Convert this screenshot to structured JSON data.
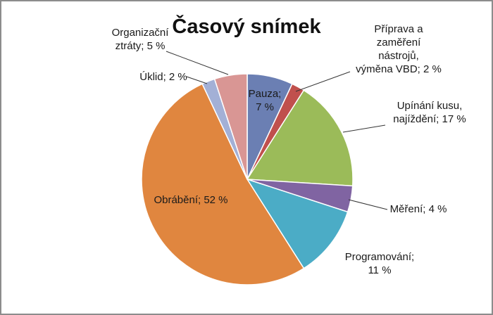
{
  "chart_data": {
    "type": "pie",
    "title": "Časový snímek",
    "slices": [
      {
        "label_lines": [
          "Pauza;",
          "7 %"
        ],
        "value": 7,
        "color": "#6b7fb3"
      },
      {
        "label_lines": [
          "Příprava a",
          "zaměření",
          "nástrojů,",
          "výměna VBD; 2 %"
        ],
        "value": 2,
        "color": "#c0504d"
      },
      {
        "label_lines": [
          "Upínání kusu,",
          "najíždění; 17 %"
        ],
        "value": 17,
        "color": "#9bbb59"
      },
      {
        "label_lines": [
          "Měření; 4 %"
        ],
        "value": 4,
        "color": "#8064a2"
      },
      {
        "label_lines": [
          "Programování;",
          "11 %"
        ],
        "value": 11,
        "color": "#4bacc6"
      },
      {
        "label_lines": [
          "Obrábění; 52 %"
        ],
        "value": 52,
        "color": "#e0863f"
      },
      {
        "label_lines": [
          "Úklid; 2 %"
        ],
        "value": 2,
        "color": "#a3b0d6"
      },
      {
        "label_lines": [
          "Organizační",
          "ztráty; 5 %"
        ],
        "value": 5,
        "color": "#d99694"
      }
    ]
  }
}
